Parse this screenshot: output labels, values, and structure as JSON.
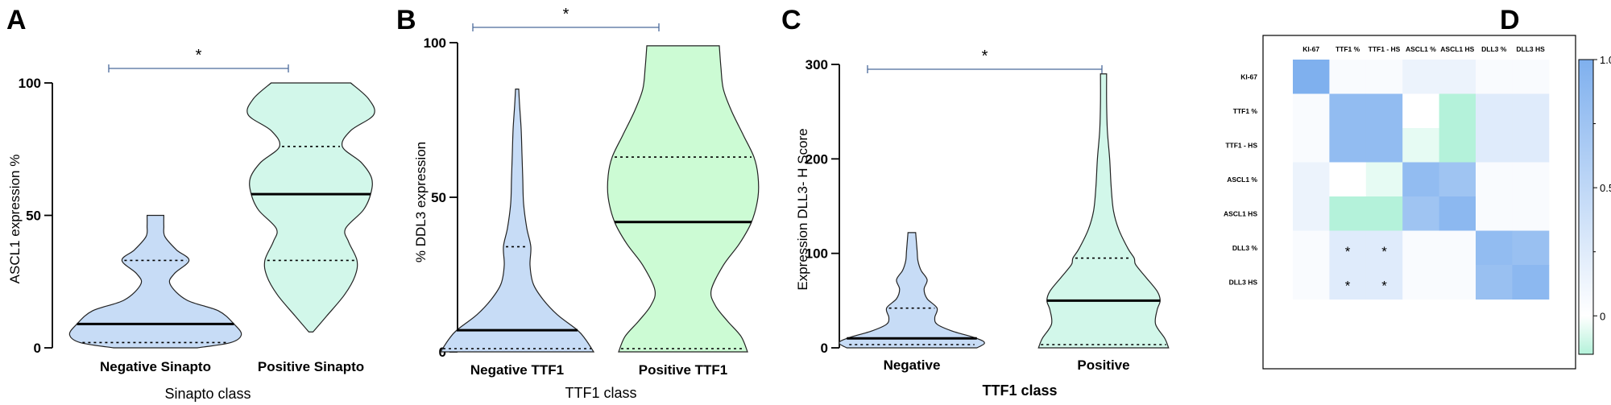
{
  "panels": [
    {
      "id": "A",
      "chart_data": {
        "type": "violin",
        "title": "",
        "xlabel": "Sinapto class",
        "ylabel": "ASCL1 expression %",
        "ylim": [
          0,
          100
        ],
        "yticks": [
          0,
          50,
          100
        ],
        "grid": false,
        "significance": "*",
        "groups": [
          {
            "name": "Negative Sinapto",
            "color": "#c7dcf6",
            "min": 0,
            "max": 50,
            "median": 9,
            "q1": 2,
            "q3": 33,
            "profile": [
              [
                0,
                0.4
              ],
              [
                2,
                0.72
              ],
              [
                5,
                0.82
              ],
              [
                9,
                0.75
              ],
              [
                14,
                0.6
              ],
              [
                18,
                0.3
              ],
              [
                24,
                0.14
              ],
              [
                28,
                0.18
              ],
              [
                33,
                0.32
              ],
              [
                37,
                0.2
              ],
              [
                42,
                0.09
              ],
              [
                46,
                0.08
              ],
              [
                50,
                0.08
              ]
            ]
          },
          {
            "name": "Positive Sinapto",
            "color": "#d2f7ea",
            "min": 6,
            "max": 100,
            "median": 58,
            "q1": 33,
            "q3": 76,
            "profile": [
              [
                6,
                0.02
              ],
              [
                12,
                0.15
              ],
              [
                20,
                0.32
              ],
              [
                27,
                0.42
              ],
              [
                33,
                0.44
              ],
              [
                40,
                0.36
              ],
              [
                45,
                0.33
              ],
              [
                52,
                0.5
              ],
              [
                58,
                0.57
              ],
              [
                64,
                0.58
              ],
              [
                70,
                0.48
              ],
              [
                76,
                0.3
              ],
              [
                82,
                0.38
              ],
              [
                88,
                0.6
              ],
              [
                94,
                0.55
              ],
              [
                100,
                0.38
              ]
            ]
          }
        ]
      }
    },
    {
      "id": "B",
      "chart_data": {
        "type": "violin",
        "title": "",
        "xlabel": "TTF1 class",
        "ylabel": "% DDL3 expression",
        "ylim": [
          0,
          100
        ],
        "yticks": [
          0,
          50,
          100
        ],
        "grid": false,
        "significance": "*",
        "groups": [
          {
            "name": "Negative TTF1",
            "color": "#c7dcf6",
            "min": 0,
            "max": 85,
            "median": 7,
            "q1": 0,
            "q3": 34,
            "profile": [
              [
                0,
                0.95
              ],
              [
                4,
                0.85
              ],
              [
                7,
                0.75
              ],
              [
                12,
                0.5
              ],
              [
                17,
                0.32
              ],
              [
                22,
                0.2
              ],
              [
                28,
                0.16
              ],
              [
                34,
                0.17
              ],
              [
                40,
                0.12
              ],
              [
                48,
                0.08
              ],
              [
                56,
                0.07
              ],
              [
                64,
                0.06
              ],
              [
                72,
                0.05
              ],
              [
                80,
                0.03
              ],
              [
                85,
                0.02
              ]
            ]
          },
          {
            "name": "Positive TTF1",
            "color": "#ccfbd4",
            "min": 0,
            "max": 99,
            "median": 42,
            "q1": 0,
            "q3": 63,
            "profile": [
              [
                0,
                0.8
              ],
              [
                5,
                0.72
              ],
              [
                10,
                0.55
              ],
              [
                15,
                0.4
              ],
              [
                20,
                0.35
              ],
              [
                28,
                0.5
              ],
              [
                35,
                0.7
              ],
              [
                42,
                0.85
              ],
              [
                50,
                0.93
              ],
              [
                57,
                0.93
              ],
              [
                63,
                0.88
              ],
              [
                70,
                0.75
              ],
              [
                78,
                0.6
              ],
              [
                85,
                0.5
              ],
              [
                92,
                0.47
              ],
              [
                99,
                0.45
              ]
            ]
          }
        ]
      }
    },
    {
      "id": "C",
      "chart_data": {
        "type": "violin",
        "title": "",
        "xlabel": "TTF1 class",
        "ylabel": "Expression DLL3- H Score",
        "ylim": [
          0,
          300
        ],
        "yticks": [
          0,
          100,
          200,
          300
        ],
        "grid": false,
        "significance": "*",
        "groups": [
          {
            "name": "Negative",
            "color": "#c7dcf6",
            "min": 0,
            "max": 122,
            "median": 10,
            "q1": 0,
            "q3": 42,
            "profile": [
              [
                0,
                0.85
              ],
              [
                5,
                0.95
              ],
              [
                10,
                0.85
              ],
              [
                18,
                0.52
              ],
              [
                25,
                0.33
              ],
              [
                32,
                0.3
              ],
              [
                42,
                0.33
              ],
              [
                52,
                0.2
              ],
              [
                62,
                0.16
              ],
              [
                72,
                0.2
              ],
              [
                82,
                0.12
              ],
              [
                92,
                0.08
              ],
              [
                102,
                0.07
              ],
              [
                112,
                0.06
              ],
              [
                122,
                0.05
              ]
            ]
          },
          {
            "name": "Positive",
            "color": "#d2f7ea",
            "min": 0,
            "max": 290,
            "median": 50,
            "q1": 0,
            "q3": 95,
            "profile": [
              [
                0,
                0.85
              ],
              [
                10,
                0.8
              ],
              [
                25,
                0.68
              ],
              [
                40,
                0.7
              ],
              [
                50,
                0.74
              ],
              [
                60,
                0.7
              ],
              [
                75,
                0.55
              ],
              [
                88,
                0.42
              ],
              [
                95,
                0.4
              ],
              [
                105,
                0.32
              ],
              [
                125,
                0.2
              ],
              [
                145,
                0.13
              ],
              [
                170,
                0.1
              ],
              [
                200,
                0.08
              ],
              [
                230,
                0.05
              ],
              [
                260,
                0.04
              ],
              [
                290,
                0.04
              ]
            ]
          }
        ]
      }
    },
    {
      "id": "D",
      "chart_data": {
        "type": "heatmap",
        "title": "",
        "labels": [
          "KI-67",
          "TTF1 %",
          "TTF1 - HS",
          "ASCL1 %",
          "ASCL1 HS",
          "DLL3 %",
          "DLL3 HS"
        ],
        "values": [
          [
            1.0,
            0.05,
            0.05,
            0.15,
            0.15,
            0.05,
            0.05
          ],
          [
            0.05,
            0.85,
            0.85,
            0.0,
            -0.2,
            0.25,
            0.25
          ],
          [
            0.05,
            0.85,
            0.85,
            -0.05,
            -0.3,
            0.25,
            0.25
          ],
          [
            0.15,
            0.0,
            -0.05,
            0.85,
            0.75,
            0.05,
            0.05
          ],
          [
            0.15,
            -0.2,
            -0.3,
            0.75,
            0.9,
            0.05,
            0.05
          ],
          [
            0.05,
            0.25,
            0.25,
            0.05,
            0.05,
            0.85,
            0.8
          ],
          [
            0.05,
            0.25,
            0.25,
            0.05,
            0.05,
            0.8,
            0.9
          ]
        ],
        "significant_cells": [
          [
            5,
            1
          ],
          [
            5,
            2
          ],
          [
            6,
            1
          ],
          [
            6,
            2
          ]
        ],
        "significance_marker": "*",
        "colorbar": {
          "min": -0.15,
          "max": 1.0,
          "ticks": [
            1.0,
            0.5,
            0
          ],
          "tick_labels": [
            "1.0",
            "0.5",
            "0"
          ]
        },
        "colors": {
          "neg": "#b4f2da",
          "zero": "#ffffff",
          "pos": "#7fb0ee"
        }
      }
    }
  ]
}
